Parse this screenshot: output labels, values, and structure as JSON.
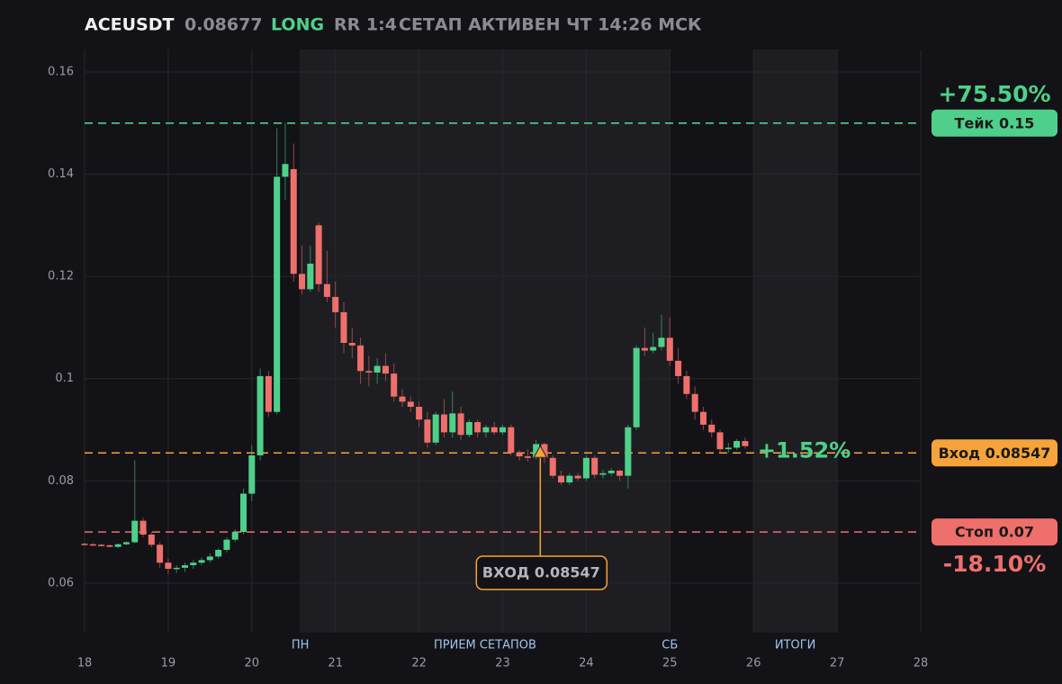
{
  "header": {
    "symbol": "ACEUSDT",
    "price": 0.08677,
    "side": "LONG",
    "rr": "RR 1:4",
    "status": "СЕТАП АКТИВЕН ЧТ 14:26 МСК"
  },
  "chart_data": {
    "type": "candlestick",
    "xlim": [
      18,
      28
    ],
    "xticks": [
      18,
      19,
      20,
      21,
      22,
      23,
      24,
      25,
      26,
      27,
      28
    ],
    "ylim": [
      0.0503,
      0.1644
    ],
    "yticks": [
      0.06,
      0.08,
      0.1,
      0.12,
      0.14,
      0.16
    ],
    "grid": true,
    "up_color": "#4fd08a",
    "down_color": "#ef6f6c",
    "zones": [
      {
        "from": 20.57,
        "to": 25
      },
      {
        "from": 26,
        "to": 27
      }
    ],
    "zone_labels": [
      {
        "x": 20.58,
        "label": "ПН"
      },
      {
        "x": 22.79,
        "label": "ПРИЕМ СЕТАПОВ"
      },
      {
        "x": 25,
        "label": "СБ"
      },
      {
        "x": 26.5,
        "label": "ИТОГИ"
      }
    ],
    "x": [
      18.0,
      18.1,
      18.2,
      18.3,
      18.4,
      18.5,
      18.6,
      18.7,
      18.8,
      18.9,
      19.0,
      19.1,
      19.2,
      19.3,
      19.4,
      19.5,
      19.6,
      19.7,
      19.8,
      19.9,
      20.0,
      20.1,
      20.2,
      20.3,
      20.4,
      20.5,
      20.6,
      20.7,
      20.8,
      20.9,
      21.0,
      21.1,
      21.2,
      21.3,
      21.4,
      21.5,
      21.6,
      21.7,
      21.8,
      21.9,
      22.0,
      22.1,
      22.2,
      22.3,
      22.4,
      22.5,
      22.6,
      22.7,
      22.8,
      22.9,
      23.0,
      23.1,
      23.2,
      23.3,
      23.4,
      23.5,
      23.6,
      23.7,
      23.8,
      23.9,
      24.0,
      24.1,
      24.2,
      24.3,
      24.4,
      24.5,
      24.6,
      24.7,
      24.8,
      24.9,
      25.0,
      25.1,
      25.2,
      25.3,
      25.4,
      25.5,
      25.6,
      25.7,
      25.8,
      25.9
    ],
    "open": [
      0.0677,
      0.0676,
      0.0675,
      0.0674,
      0.0671,
      0.0676,
      0.068,
      0.0722,
      0.0695,
      0.0675,
      0.064,
      0.0628,
      0.063,
      0.0635,
      0.064,
      0.0645,
      0.0652,
      0.0665,
      0.0685,
      0.07,
      0.0775,
      0.085,
      0.1005,
      0.0935,
      0.1395,
      0.141,
      0.1205,
      0.1175,
      0.13,
      0.1185,
      0.116,
      0.113,
      0.107,
      0.1065,
      0.1015,
      0.1012,
      0.1025,
      0.101,
      0.0965,
      0.0955,
      0.0945,
      0.092,
      0.0875,
      0.093,
      0.0895,
      0.0932,
      0.089,
      0.0915,
      0.0895,
      0.0905,
      0.0895,
      0.0905,
      0.0855,
      0.0848,
      0.0845,
      0.0872,
      0.0845,
      0.081,
      0.0797,
      0.081,
      0.0805,
      0.0845,
      0.0812,
      0.0815,
      0.082,
      0.081,
      0.0905,
      0.106,
      0.1055,
      0.1062,
      0.108,
      0.1035,
      0.1005,
      0.097,
      0.0935,
      0.091,
      0.0895,
      0.0862,
      0.0865,
      0.0878
    ],
    "high": [
      0.0679,
      0.0678,
      0.0677,
      0.0676,
      0.0678,
      0.0682,
      0.084,
      0.0728,
      0.07,
      0.068,
      0.0648,
      0.0635,
      0.064,
      0.0645,
      0.065,
      0.0658,
      0.0668,
      0.069,
      0.0705,
      0.0785,
      0.087,
      0.102,
      0.1015,
      0.149,
      0.15,
      0.146,
      0.126,
      0.126,
      0.1305,
      0.125,
      0.119,
      0.115,
      0.11,
      0.108,
      0.1045,
      0.104,
      0.105,
      0.103,
      0.098,
      0.0965,
      0.0955,
      0.0935,
      0.0935,
      0.096,
      0.0975,
      0.0945,
      0.092,
      0.092,
      0.091,
      0.0915,
      0.091,
      0.091,
      0.086,
      0.0862,
      0.088,
      0.0875,
      0.085,
      0.082,
      0.0815,
      0.0815,
      0.085,
      0.085,
      0.0822,
      0.0825,
      0.0822,
      0.091,
      0.1065,
      0.11,
      0.109,
      0.1125,
      0.112,
      0.106,
      0.1015,
      0.0985,
      0.0945,
      0.092,
      0.09,
      0.0875,
      0.0882,
      0.0885
    ],
    "low": [
      0.0674,
      0.0673,
      0.0672,
      0.067,
      0.0669,
      0.0674,
      0.0678,
      0.069,
      0.067,
      0.063,
      0.0618,
      0.062,
      0.0622,
      0.0628,
      0.0635,
      0.064,
      0.0648,
      0.066,
      0.068,
      0.0695,
      0.076,
      0.084,
      0.0925,
      0.093,
      0.135,
      0.119,
      0.1165,
      0.117,
      0.117,
      0.115,
      0.11,
      0.105,
      0.104,
      0.099,
      0.0985,
      0.099,
      0.0995,
      0.0955,
      0.0945,
      0.0935,
      0.0905,
      0.0865,
      0.087,
      0.0885,
      0.0885,
      0.088,
      0.0885,
      0.0885,
      0.0885,
      0.089,
      0.089,
      0.085,
      0.084,
      0.0838,
      0.0842,
      0.0835,
      0.0805,
      0.0792,
      0.0792,
      0.08,
      0.08,
      0.0805,
      0.0805,
      0.081,
      0.08,
      0.0785,
      0.09,
      0.1045,
      0.105,
      0.1055,
      0.1025,
      0.099,
      0.096,
      0.092,
      0.09,
      0.0885,
      0.0855,
      0.0855,
      0.086,
      0.0863
    ],
    "close": [
      0.0676,
      0.0675,
      0.0674,
      0.0671,
      0.0676,
      0.068,
      0.0722,
      0.0695,
      0.0675,
      0.064,
      0.0628,
      0.063,
      0.0635,
      0.064,
      0.0645,
      0.0652,
      0.0665,
      0.0685,
      0.07,
      0.0775,
      0.085,
      0.1005,
      0.0935,
      0.1395,
      0.142,
      0.1205,
      0.1175,
      0.1225,
      0.1185,
      0.116,
      0.113,
      0.107,
      0.1065,
      0.1015,
      0.1012,
      0.1025,
      0.101,
      0.0965,
      0.0955,
      0.0945,
      0.092,
      0.0875,
      0.093,
      0.0895,
      0.0932,
      0.089,
      0.0915,
      0.0895,
      0.0905,
      0.0895,
      0.0905,
      0.0855,
      0.0848,
      0.0845,
      0.0872,
      0.0845,
      0.081,
      0.0797,
      0.081,
      0.0805,
      0.0845,
      0.0812,
      0.0815,
      0.082,
      0.081,
      0.0905,
      0.106,
      0.1055,
      0.1062,
      0.108,
      0.1035,
      0.1005,
      0.097,
      0.0935,
      0.091,
      0.0895,
      0.0862,
      0.0865,
      0.0878,
      0.0868
    ],
    "levels": [
      {
        "value": 0.15,
        "label": "Тейк 0.15",
        "change": "+75.50%",
        "color": "#4fd08a"
      },
      {
        "value": 0.08547,
        "label": "Вход 0.08547",
        "color": "#f5a33a"
      },
      {
        "value": 0.07,
        "label": "Стоп 0.07",
        "change": "-18.10%",
        "color": "#ef6f6c"
      }
    ],
    "entry": {
      "x": 23.45,
      "value": 0.08547,
      "label": "ВХОД 0.08547",
      "color": "#f5a33a"
    },
    "last_change": "+1.52%"
  }
}
